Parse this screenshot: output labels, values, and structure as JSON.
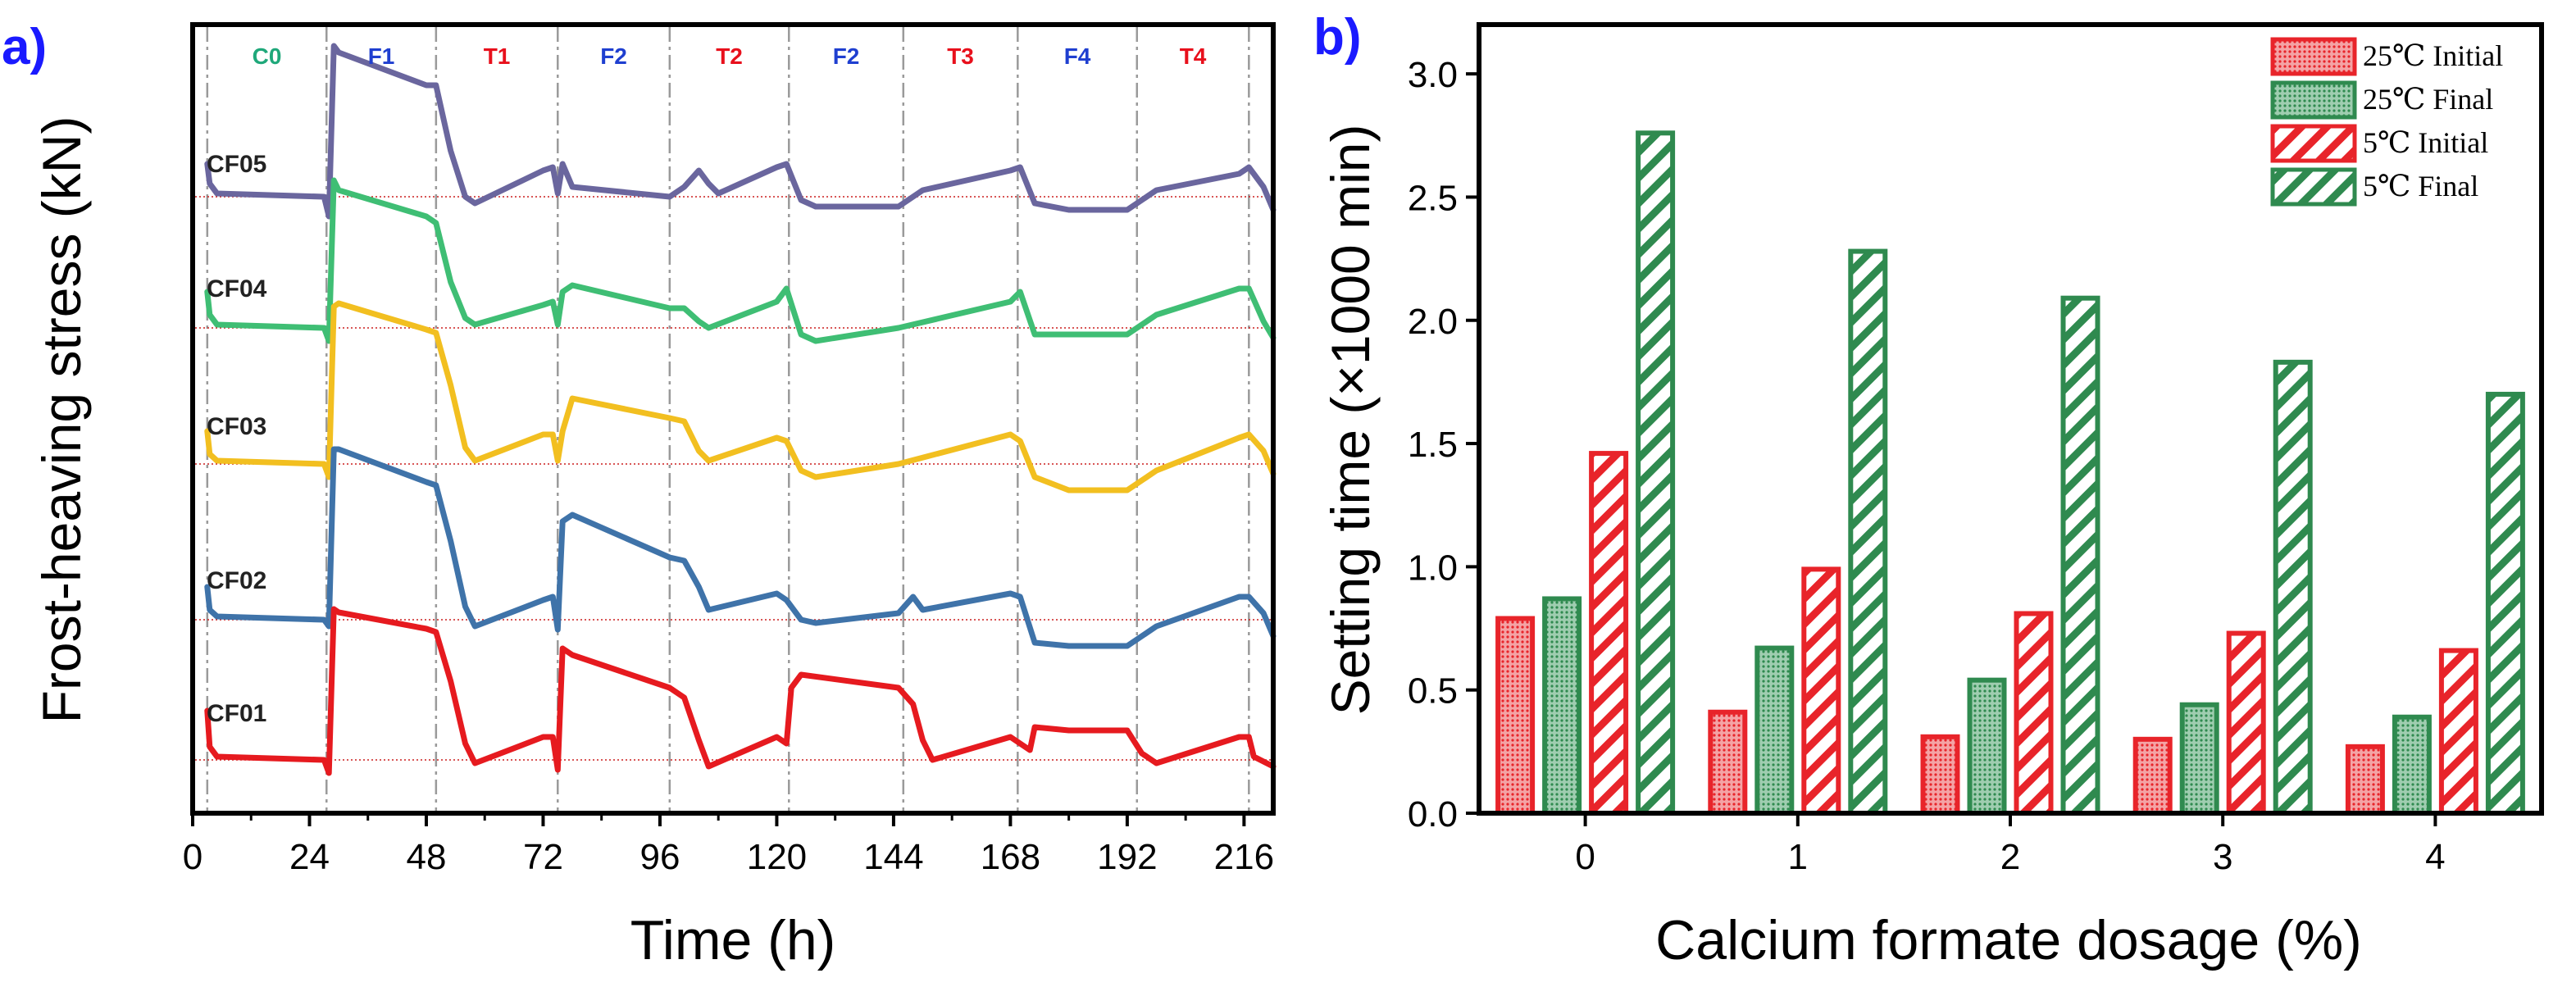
{
  "chart_data": [
    {
      "panel": "a)",
      "type": "line",
      "xlabel": "Time (h)",
      "ylabel": "Frost-heaving stress (kN)",
      "xlim": [
        0,
        222
      ],
      "xticks": [
        0,
        24,
        48,
        72,
        96,
        120,
        144,
        168,
        192,
        216
      ],
      "y_ticks_shown": false,
      "phase_boundaries": [
        3,
        27.5,
        50,
        75,
        98,
        122.5,
        146,
        169.5,
        194,
        217
      ],
      "phases": [
        {
          "label": "C0",
          "color": "#1fa87a"
        },
        {
          "label": "F1",
          "color": "#1f3fd0"
        },
        {
          "label": "T1",
          "color": "#e8101c"
        },
        {
          "label": "F2",
          "color": "#1f3fd0"
        },
        {
          "label": "T2",
          "color": "#e8101c"
        },
        {
          "label": "F2",
          "color": "#1f3fd0"
        },
        {
          "label": "T3",
          "color": "#e8101c"
        },
        {
          "label": "F4",
          "color": "#1f3fd0"
        },
        {
          "label": "T4",
          "color": "#e8101c"
        }
      ],
      "series": [
        {
          "name": "CF05",
          "color": "#6a669e",
          "baseline": 0,
          "points": [
            [
              3,
              0.5
            ],
            [
              3.5,
              0.2
            ],
            [
              5,
              0.05
            ],
            [
              27,
              0
            ],
            [
              28,
              -0.3
            ],
            [
              29,
              2.3
            ],
            [
              30,
              2.2
            ],
            [
              48,
              1.7
            ],
            [
              50,
              1.7
            ],
            [
              53,
              0.7
            ],
            [
              56,
              0
            ],
            [
              58,
              -0.1
            ],
            [
              72,
              0.4
            ],
            [
              74,
              0.45
            ],
            [
              75,
              0.05
            ],
            [
              76,
              0.5
            ],
            [
              78,
              0.15
            ],
            [
              98,
              0
            ],
            [
              101,
              0.15
            ],
            [
              104,
              0.4
            ],
            [
              106,
              0.2
            ],
            [
              108,
              0.05
            ],
            [
              120,
              0.45
            ],
            [
              122,
              0.5
            ],
            [
              125,
              -0.05
            ],
            [
              128,
              -0.15
            ],
            [
              145,
              -0.15
            ],
            [
              150,
              0.1
            ],
            [
              168,
              0.4
            ],
            [
              170,
              0.45
            ],
            [
              173,
              -0.1
            ],
            [
              180,
              -0.2
            ],
            [
              192,
              -0.2
            ],
            [
              198,
              0.1
            ],
            [
              215,
              0.35
            ],
            [
              217,
              0.45
            ],
            [
              220,
              0.15
            ],
            [
              222,
              -0.2
            ]
          ]
        },
        {
          "name": "CF04",
          "color": "#3fbe74",
          "baseline": 0,
          "points": [
            [
              3,
              0.55
            ],
            [
              3.5,
              0.2
            ],
            [
              5,
              0.05
            ],
            [
              27,
              0
            ],
            [
              28,
              -0.2
            ],
            [
              29,
              2.25
            ],
            [
              30,
              2.1
            ],
            [
              48,
              1.7
            ],
            [
              50,
              1.6
            ],
            [
              53,
              0.7
            ],
            [
              56,
              0.15
            ],
            [
              58,
              0.05
            ],
            [
              72,
              0.35
            ],
            [
              74,
              0.4
            ],
            [
              75,
              0.05
            ],
            [
              76,
              0.55
            ],
            [
              78,
              0.65
            ],
            [
              98,
              0.3
            ],
            [
              101,
              0.3
            ],
            [
              104,
              0.1
            ],
            [
              106,
              0
            ],
            [
              120,
              0.4
            ],
            [
              122,
              0.6
            ],
            [
              125,
              -0.1
            ],
            [
              128,
              -0.2
            ],
            [
              145,
              0
            ],
            [
              168,
              0.4
            ],
            [
              170,
              0.55
            ],
            [
              173,
              -0.1
            ],
            [
              180,
              -0.1
            ],
            [
              192,
              -0.1
            ],
            [
              198,
              0.2
            ],
            [
              215,
              0.6
            ],
            [
              217,
              0.6
            ],
            [
              220,
              0.1
            ],
            [
              222,
              -0.15
            ]
          ]
        },
        {
          "name": "CF03",
          "color": "#f2bf20",
          "baseline": 0,
          "points": [
            [
              3,
              0.5
            ],
            [
              3.5,
              0.15
            ],
            [
              5,
              0.05
            ],
            [
              27,
              0
            ],
            [
              28,
              -0.2
            ],
            [
              29,
              2.4
            ],
            [
              30,
              2.45
            ],
            [
              48,
              2.05
            ],
            [
              50,
              2
            ],
            [
              53,
              1.2
            ],
            [
              56,
              0.25
            ],
            [
              58,
              0.05
            ],
            [
              72,
              0.45
            ],
            [
              74,
              0.45
            ],
            [
              75,
              0.05
            ],
            [
              76,
              0.5
            ],
            [
              78,
              1.0
            ],
            [
              98,
              0.7
            ],
            [
              101,
              0.65
            ],
            [
              104,
              0.2
            ],
            [
              106,
              0.05
            ],
            [
              120,
              0.4
            ],
            [
              122,
              0.35
            ],
            [
              125,
              -0.1
            ],
            [
              128,
              -0.2
            ],
            [
              145,
              0
            ],
            [
              168,
              0.45
            ],
            [
              170,
              0.35
            ],
            [
              173,
              -0.2
            ],
            [
              180,
              -0.4
            ],
            [
              192,
              -0.4
            ],
            [
              198,
              -0.1
            ],
            [
              215,
              0.4
            ],
            [
              217,
              0.45
            ],
            [
              220,
              0.2
            ],
            [
              222,
              -0.15
            ]
          ]
        },
        {
          "name": "CF02",
          "color": "#3f73a9",
          "baseline": 0,
          "points": [
            [
              3,
              0.5
            ],
            [
              3.5,
              0.15
            ],
            [
              5,
              0.05
            ],
            [
              27,
              0
            ],
            [
              28,
              -0.1
            ],
            [
              29,
              2.6
            ],
            [
              30,
              2.6
            ],
            [
              48,
              2.1
            ],
            [
              50,
              2.05
            ],
            [
              53,
              1.2
            ],
            [
              56,
              0.2
            ],
            [
              58,
              -0.1
            ],
            [
              72,
              0.3
            ],
            [
              74,
              0.35
            ],
            [
              75,
              -0.15
            ],
            [
              76,
              1.5
            ],
            [
              78,
              1.6
            ],
            [
              98,
              0.95
            ],
            [
              101,
              0.9
            ],
            [
              104,
              0.5
            ],
            [
              106,
              0.15
            ],
            [
              120,
              0.4
            ],
            [
              122,
              0.3
            ],
            [
              125,
              0
            ],
            [
              128,
              -0.05
            ],
            [
              145,
              0.1
            ],
            [
              148,
              0.35
            ],
            [
              150,
              0.15
            ],
            [
              168,
              0.4
            ],
            [
              170,
              0.35
            ],
            [
              173,
              -0.35
            ],
            [
              180,
              -0.4
            ],
            [
              192,
              -0.4
            ],
            [
              198,
              -0.1
            ],
            [
              215,
              0.35
            ],
            [
              217,
              0.35
            ],
            [
              220,
              0.1
            ],
            [
              222,
              -0.25
            ]
          ]
        },
        {
          "name": "CF01",
          "color": "#e61a1f",
          "baseline": 0,
          "points": [
            [
              3,
              0.75
            ],
            [
              3.5,
              0.2
            ],
            [
              5,
              0.05
            ],
            [
              27,
              0
            ],
            [
              28,
              -0.2
            ],
            [
              29,
              2.3
            ],
            [
              30,
              2.25
            ],
            [
              48,
              2.0
            ],
            [
              50,
              1.95
            ],
            [
              53,
              1.2
            ],
            [
              56,
              0.25
            ],
            [
              58,
              -0.05
            ],
            [
              72,
              0.35
            ],
            [
              74,
              0.35
            ],
            [
              75,
              -0.15
            ],
            [
              76,
              1.7
            ],
            [
              78,
              1.6
            ],
            [
              98,
              1.1
            ],
            [
              101,
              0.95
            ],
            [
              104,
              0.3
            ],
            [
              106,
              -0.1
            ],
            [
              120,
              0.35
            ],
            [
              122,
              0.25
            ],
            [
              123,
              1.1
            ],
            [
              125,
              1.3
            ],
            [
              145,
              1.1
            ],
            [
              148,
              0.85
            ],
            [
              150,
              0.3
            ],
            [
              152,
              0
            ],
            [
              168,
              0.35
            ],
            [
              170,
              0.25
            ],
            [
              172,
              0.15
            ],
            [
              173,
              0.5
            ],
            [
              180,
              0.45
            ],
            [
              192,
              0.45
            ],
            [
              195,
              0.1
            ],
            [
              198,
              -0.05
            ],
            [
              215,
              0.35
            ],
            [
              217,
              0.35
            ],
            [
              218,
              0.05
            ],
            [
              222,
              -0.1
            ]
          ]
        }
      ]
    },
    {
      "panel": "b)",
      "type": "bar",
      "xlabel": "Calcium formate dosage (%)",
      "ylabel": "Setting time (×1000 min)",
      "categories": [
        "0",
        "1",
        "2",
        "3",
        "4"
      ],
      "ylim": [
        0,
        3.2
      ],
      "yticks": [
        "0.0",
        "0.5",
        "1.0",
        "1.5",
        "2.0",
        "2.5",
        "3.0"
      ],
      "legend_position": "top-right",
      "series": [
        {
          "name": "25℃ Initial",
          "color": "#e8242a",
          "pattern": "dots",
          "values": [
            0.79,
            0.41,
            0.31,
            0.3,
            0.27
          ]
        },
        {
          "name": "25℃ Final",
          "color": "#2f8a4f",
          "pattern": "dots",
          "values": [
            0.87,
            0.67,
            0.54,
            0.44,
            0.39
          ]
        },
        {
          "name": "5℃ Initial",
          "color": "#e8242a",
          "pattern": "hatch",
          "values": [
            1.46,
            0.99,
            0.81,
            0.73,
            0.66
          ]
        },
        {
          "name": "5℃ Final",
          "color": "#2f8a4f",
          "pattern": "hatch",
          "values": [
            2.76,
            2.28,
            2.09,
            1.83,
            1.7
          ]
        }
      ]
    }
  ]
}
